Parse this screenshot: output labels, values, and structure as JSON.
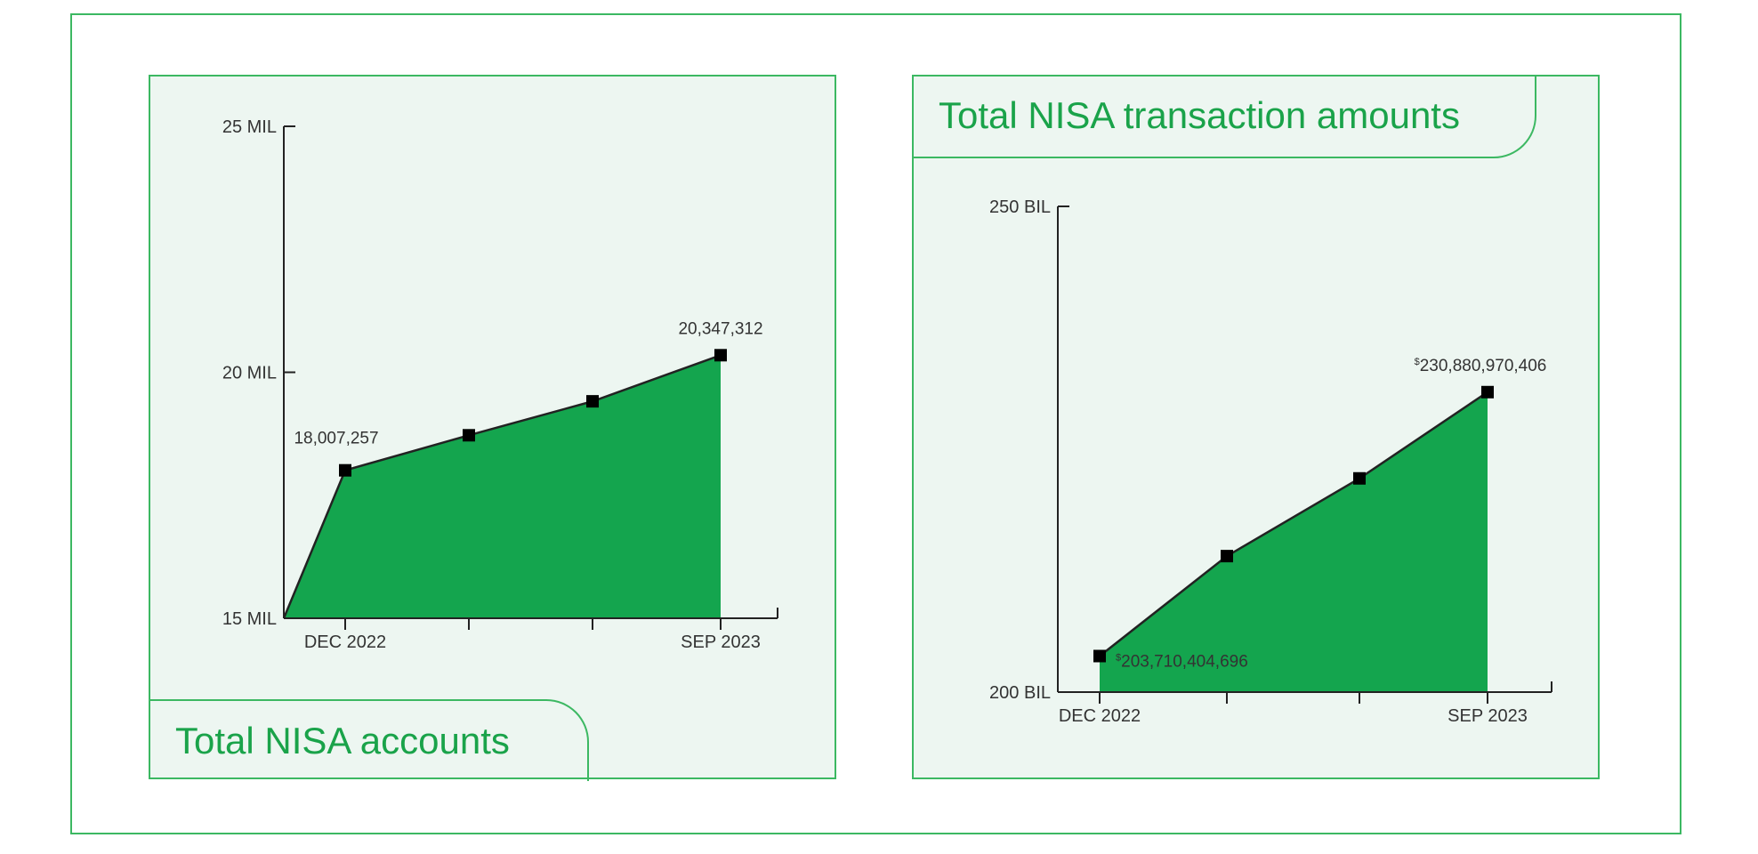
{
  "colors": {
    "fill": "#14a54e",
    "line": "#222222",
    "border": "#3cb862",
    "title": "#1aa34a",
    "panel_bg": "#edf6f1"
  },
  "chart_data": [
    {
      "type": "area",
      "title": "Total NISA accounts",
      "categories": [
        "DEC 2022",
        "",
        "",
        "SEP 2023"
      ],
      "x_tick_labels": [
        "DEC 2022",
        "SEP 2023"
      ],
      "values": [
        18007257,
        18720000,
        19410000,
        20347312
      ],
      "y_tick_labels": [
        "25 MIL",
        "20 MIL",
        "15 MIL"
      ],
      "y_ticks": [
        25000000,
        20000000,
        15000000
      ],
      "ylim": [
        15000000,
        25000000
      ],
      "data_labels": [
        {
          "index": 0,
          "text": "18,007,257"
        },
        {
          "index": 3,
          "text": "20,347,312"
        }
      ],
      "starts_at_origin": true,
      "grid": false
    },
    {
      "type": "area",
      "title": "Total NISA transaction amounts",
      "categories": [
        "DEC 2022",
        "",
        "",
        "SEP 2023"
      ],
      "x_tick_labels": [
        "DEC 2022",
        "SEP 2023"
      ],
      "values": [
        203710404696,
        214000000000,
        222000000000,
        230880970406
      ],
      "y_tick_labels": [
        "250 BIL",
        "200 BIL"
      ],
      "y_ticks": [
        250000000000,
        200000000000
      ],
      "ylim": [
        200000000000,
        250000000000
      ],
      "data_labels": [
        {
          "index": 0,
          "text": "203,710,404,696",
          "prefix": "$"
        },
        {
          "index": 3,
          "text": "230,880,970,406",
          "prefix": "$"
        }
      ],
      "starts_at_origin": false,
      "grid": false
    }
  ]
}
